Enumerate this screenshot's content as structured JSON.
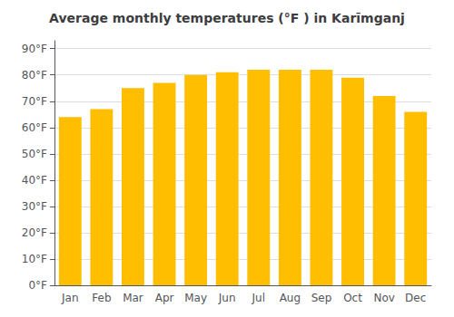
{
  "chart_data": {
    "type": "bar",
    "title": "Average monthly temperatures (°F ) in Karīmganj",
    "categories": [
      "Jan",
      "Feb",
      "Mar",
      "Apr",
      "May",
      "Jun",
      "Jul",
      "Aug",
      "Sep",
      "Oct",
      "Nov",
      "Dec"
    ],
    "values": [
      64,
      67,
      75,
      77,
      80,
      81,
      82,
      82,
      82,
      79,
      72,
      66
    ],
    "color": "#FFBE00",
    "ylim": [
      0,
      93
    ],
    "yticks": [
      {
        "value": 0,
        "label": "0°F"
      },
      {
        "value": 10,
        "label": "10°F"
      },
      {
        "value": 20,
        "label": "20°F"
      },
      {
        "value": 30,
        "label": "30°F"
      },
      {
        "value": 40,
        "label": "40°F"
      },
      {
        "value": 50,
        "label": "50°F"
      },
      {
        "value": 60,
        "label": "60°F"
      },
      {
        "value": 70,
        "label": "70°F"
      },
      {
        "value": 80,
        "label": "80°F"
      },
      {
        "value": 90,
        "label": "90°F"
      }
    ],
    "grid": true
  }
}
